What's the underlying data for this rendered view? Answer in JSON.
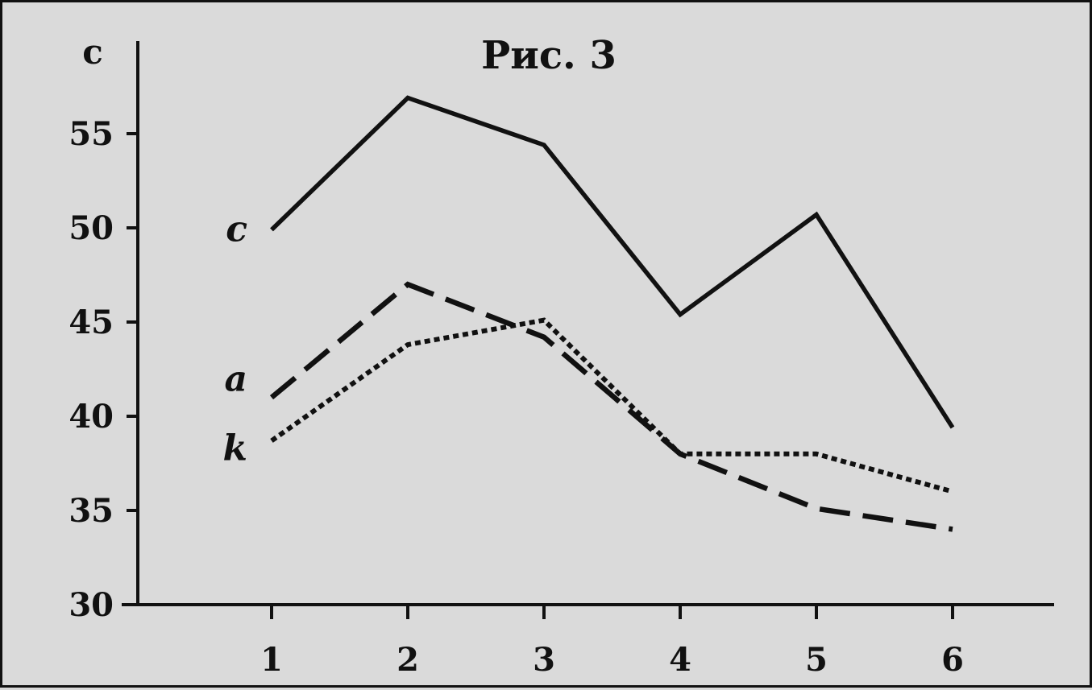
{
  "chart_data": {
    "type": "line",
    "title": "Рис. 3",
    "ylabel": "с",
    "xlabel": "",
    "x": [
      1,
      2,
      3,
      4,
      5,
      6
    ],
    "ylim": [
      30,
      58
    ],
    "yticks": [
      30,
      35,
      40,
      45,
      50,
      55
    ],
    "grid": false,
    "series": [
      {
        "name": "c",
        "style": "solid",
        "values": [
          49.9,
          56.9,
          54.4,
          45.4,
          50.7,
          39.4
        ]
      },
      {
        "name": "a",
        "style": "dashed",
        "values": [
          41.0,
          47.0,
          44.2,
          38.0,
          35.1,
          34.0
        ]
      },
      {
        "name": "k",
        "style": "dotted",
        "values": [
          38.7,
          43.8,
          45.1,
          38.0,
          38.0,
          36.0
        ]
      }
    ],
    "colors": {
      "ink": "#111111",
      "paper": "#dadada"
    }
  }
}
